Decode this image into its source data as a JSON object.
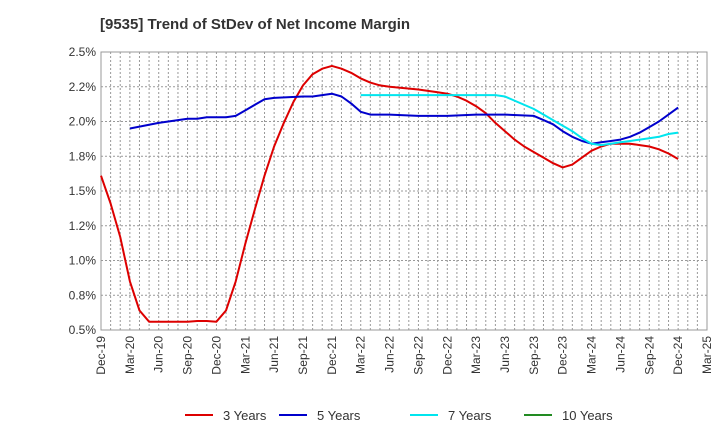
{
  "chart_data": {
    "type": "line",
    "title": "[9535]  Trend of StDev of Net Income Margin",
    "xlabel": "",
    "ylabel": "",
    "x_ticks": [
      "Dec-19",
      "Mar-20",
      "Jun-20",
      "Sep-20",
      "Dec-20",
      "Mar-21",
      "Jun-21",
      "Sep-21",
      "Dec-21",
      "Mar-22",
      "Jun-22",
      "Sep-22",
      "Dec-22",
      "Mar-23",
      "Jun-23",
      "Sep-23",
      "Dec-23",
      "Mar-24",
      "Jun-24",
      "Sep-24",
      "Dec-24",
      "Mar-25"
    ],
    "y_ticks": [
      "0.5%",
      "0.8%",
      "1.0%",
      "1.2%",
      "1.5%",
      "1.8%",
      "2.0%",
      "2.2%",
      "2.5%"
    ],
    "ylim": [
      0.5,
      2.5
    ],
    "grid": true,
    "legend_position": "bottom",
    "series": [
      {
        "name": "3 Years",
        "color": "#dd0000",
        "x": [
          "Dec-19",
          "Jan-20",
          "Feb-20",
          "Mar-20",
          "Apr-20",
          "May-20",
          "Jun-20",
          "Sep-20",
          "Oct-20",
          "Nov-20",
          "Dec-20",
          "Jan-21",
          "Feb-21",
          "Mar-21",
          "Apr-21",
          "May-21",
          "Jun-21",
          "Jul-21",
          "Aug-21",
          "Sep-21",
          "Oct-21",
          "Nov-21",
          "Dec-21",
          "Jan-22",
          "Feb-22",
          "Mar-22",
          "Apr-22",
          "May-22",
          "Jun-22",
          "Sep-22",
          "Oct-22",
          "Nov-22",
          "Dec-22",
          "Jan-23",
          "Feb-23",
          "Mar-23",
          "Apr-23",
          "May-23",
          "Jun-23",
          "Jul-23",
          "Aug-23",
          "Sep-23",
          "Oct-23",
          "Nov-23",
          "Dec-23",
          "Jan-24",
          "Feb-24",
          "Mar-24",
          "Apr-24",
          "May-24",
          "Jun-24",
          "Jul-24",
          "Aug-24",
          "Sep-24",
          "Oct-24",
          "Nov-24",
          "Dec-24"
        ],
        "values": [
          1.61,
          1.41,
          1.17,
          0.85,
          0.64,
          0.56,
          0.56,
          0.56,
          0.565,
          0.565,
          0.56,
          0.64,
          0.85,
          1.12,
          1.37,
          1.61,
          1.82,
          1.99,
          2.14,
          2.26,
          2.34,
          2.38,
          2.4,
          2.38,
          2.35,
          2.31,
          2.28,
          2.26,
          2.25,
          2.23,
          2.22,
          2.21,
          2.2,
          2.18,
          2.15,
          2.11,
          2.06,
          1.99,
          1.93,
          1.87,
          1.82,
          1.78,
          1.74,
          1.7,
          1.67,
          1.69,
          1.74,
          1.79,
          1.82,
          1.84,
          1.84,
          1.84,
          1.83,
          1.82,
          1.8,
          1.77,
          1.73
        ]
      },
      {
        "name": "5 Years",
        "color": "#0000cc",
        "x": [
          "Dec-19",
          "Mar-20",
          "Jun-20",
          "Sep-20",
          "Oct-20",
          "Nov-20",
          "Dec-20",
          "Jan-21",
          "Feb-21",
          "Mar-21",
          "Apr-21",
          "May-21",
          "Jun-21",
          "Sep-21",
          "Oct-21",
          "Nov-21",
          "Dec-21",
          "Jan-22",
          "Feb-22",
          "Mar-22",
          "Apr-22",
          "May-22",
          "Jun-22",
          "Sep-22",
          "Dec-22",
          "Mar-23",
          "Jun-23",
          "Sep-23",
          "Oct-23",
          "Nov-23",
          "Dec-23",
          "Jan-24",
          "Feb-24",
          "Mar-24",
          "Apr-24",
          "May-24",
          "Jun-24",
          "Jul-24",
          "Aug-24",
          "Sep-24",
          "Oct-24",
          "Nov-24",
          "Dec-24"
        ],
        "values": [
          null,
          1.95,
          1.99,
          2.02,
          2.02,
          2.03,
          2.03,
          2.03,
          2.04,
          2.08,
          2.12,
          2.16,
          2.17,
          2.18,
          2.18,
          2.19,
          2.2,
          2.18,
          2.13,
          2.07,
          2.05,
          2.05,
          2.05,
          2.04,
          2.04,
          2.05,
          2.05,
          2.04,
          2.01,
          1.98,
          1.93,
          1.89,
          1.86,
          1.84,
          1.85,
          1.86,
          1.87,
          1.89,
          1.92,
          1.96,
          2.0,
          2.05,
          2.1
        ]
      },
      {
        "name": "7 Years",
        "color": "#00e5ee",
        "x": [
          "Mar-22",
          "Jun-22",
          "Sep-22",
          "Dec-22",
          "Mar-23",
          "Apr-23",
          "May-23",
          "Jun-23",
          "Sep-23",
          "Dec-23",
          "Jan-24",
          "Feb-24",
          "Mar-24",
          "Apr-24",
          "May-24",
          "Jun-24",
          "Jul-24",
          "Aug-24",
          "Sep-24",
          "Oct-24",
          "Nov-24",
          "Dec-24"
        ],
        "values": [
          2.19,
          2.19,
          2.19,
          2.19,
          2.19,
          2.19,
          2.19,
          2.18,
          2.09,
          1.97,
          1.93,
          1.88,
          1.84,
          1.83,
          1.84,
          1.85,
          1.86,
          1.87,
          1.88,
          1.89,
          1.91,
          1.92
        ]
      },
      {
        "name": "10 Years",
        "color": "#228b22",
        "x": [],
        "values": []
      }
    ]
  }
}
